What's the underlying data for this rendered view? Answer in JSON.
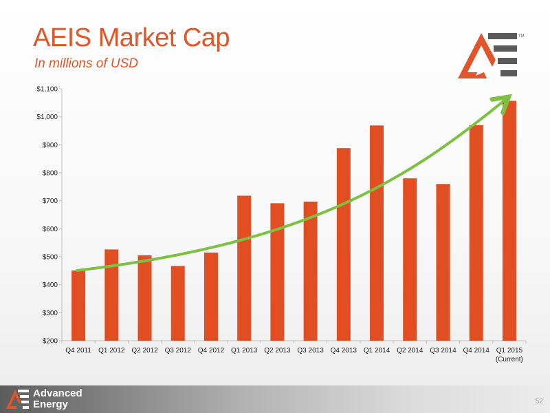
{
  "header": {
    "title": "AEIS Market Cap",
    "subtitle": "In millions of USD"
  },
  "footer": {
    "brand_line1": "Advanced",
    "brand_line2": "Energy",
    "page_number": "52"
  },
  "colors": {
    "accent": "#e0552a",
    "bar": "#e04e21",
    "trend": "#7dc142",
    "logo_gray": "#5a5a5a"
  },
  "icons": {
    "logo": "advanced-energy-ae-logo",
    "trend": "green-trend-arrow"
  },
  "chart_data": {
    "type": "bar",
    "title": "",
    "xlabel": "",
    "ylabel": "",
    "categories": [
      "Q4 2011",
      "Q1 2012",
      "Q2 2012",
      "Q3 2012",
      "Q4 2012",
      "Q1 2013",
      "Q2 2013",
      "Q3 2013",
      "Q4 2013",
      "Q1 2014",
      "Q2 2014",
      "Q3 2014",
      "Q4 2014",
      "Q1 2015"
    ],
    "category_sublabels": [
      "",
      "",
      "",
      "",
      "",
      "",
      "",
      "",
      "",
      "",
      "",
      "",
      "",
      "(Current)"
    ],
    "values": [
      451,
      526,
      505,
      467,
      515,
      718,
      691,
      697,
      888,
      969,
      780,
      760,
      970,
      1057
    ],
    "ylim": [
      200,
      1100
    ],
    "yticks": [
      200,
      300,
      400,
      500,
      600,
      700,
      800,
      900,
      1000,
      1100
    ],
    "ytick_labels": [
      "$200",
      "$300",
      "$400",
      "$500",
      "$600",
      "$700",
      "$800",
      "$900",
      "$1,000",
      "$1,100"
    ],
    "trend_arrow": {
      "start": 451,
      "end": 1065
    },
    "grid": false,
    "legend": "none"
  }
}
